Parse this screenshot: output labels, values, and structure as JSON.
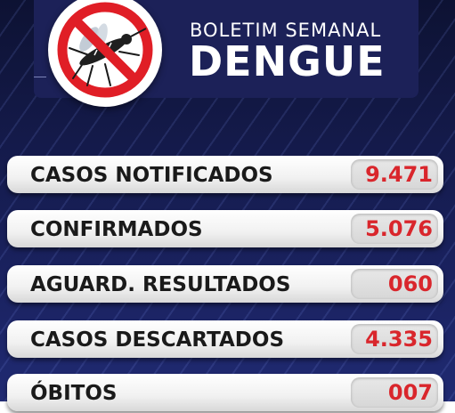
{
  "header": {
    "subtitle": "BOLETIM SEMANAL",
    "title": "DENGUE",
    "logo_icon": "no-mosquito-icon"
  },
  "colors": {
    "background": "#141a4a",
    "header_panel": "#1c2158",
    "value_text": "#d9262c",
    "label_text": "#1a1a1a",
    "prohibition_red": "#e01e26"
  },
  "stats": [
    {
      "label": "CASOS NOTIFICADOS",
      "value": "9.471"
    },
    {
      "label": "CONFIRMADOS",
      "value": "5.076"
    },
    {
      "label": "AGUARD. RESULTADOS",
      "value": "060"
    },
    {
      "label": "CASOS DESCARTADOS",
      "value": "4.335"
    },
    {
      "label": "ÓBITOS",
      "value": "007"
    }
  ]
}
